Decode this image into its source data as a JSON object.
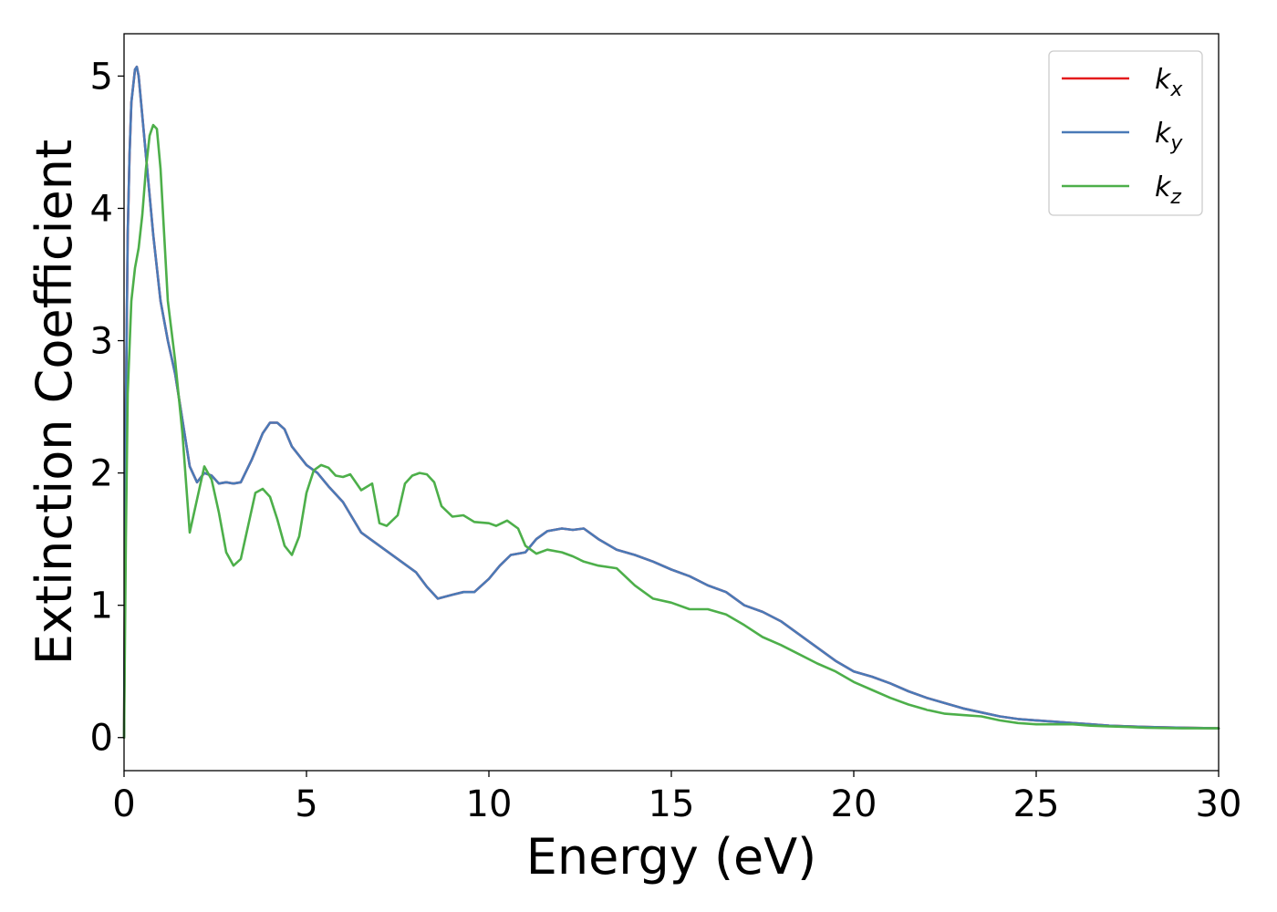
{
  "chart_data": {
    "type": "line",
    "title": "",
    "xlabel": "Energy (eV)",
    "ylabel": "Extinction Coefficient",
    "xlim": [
      0,
      30
    ],
    "ylim": [
      -0.25,
      5.32
    ],
    "xticks": [
      0,
      5,
      10,
      15,
      20,
      25,
      30
    ],
    "yticks": [
      0,
      1,
      2,
      3,
      4,
      5
    ],
    "grid": false,
    "legend_position": "top-right",
    "series": [
      {
        "name": "k",
        "subscript": "x",
        "color": "#e41a1c",
        "x": [
          0,
          0.05,
          0.1,
          0.15,
          0.2,
          0.3,
          0.35,
          0.4,
          0.5,
          0.6,
          0.7,
          0.8,
          1.0,
          1.2,
          1.4,
          1.6,
          1.8,
          2.0,
          2.2,
          2.4,
          2.6,
          2.8,
          3.0,
          3.2,
          3.5,
          3.8,
          4.0,
          4.2,
          4.4,
          4.6,
          5.0,
          5.3,
          5.6,
          6.0,
          6.5,
          7.0,
          7.5,
          8.0,
          8.3,
          8.6,
          9.0,
          9.3,
          9.6,
          10.0,
          10.3,
          10.6,
          11.0,
          11.3,
          11.6,
          12.0,
          12.3,
          12.6,
          13.0,
          13.5,
          14.0,
          14.5,
          15.0,
          15.5,
          16.0,
          16.5,
          17.0,
          17.5,
          18.0,
          18.5,
          19.0,
          19.5,
          20.0,
          20.5,
          21.0,
          21.5,
          22.0,
          22.5,
          23.0,
          23.5,
          24.0,
          24.5,
          25.0,
          25.5,
          26.0,
          26.5,
          27.0,
          27.5,
          28.0,
          29.0,
          30.0
        ],
        "y": [
          0,
          2.5,
          3.8,
          4.4,
          4.8,
          5.05,
          5.07,
          5.0,
          4.7,
          4.4,
          4.1,
          3.8,
          3.3,
          3.0,
          2.75,
          2.4,
          2.05,
          1.93,
          2.0,
          1.98,
          1.92,
          1.93,
          1.92,
          1.93,
          2.1,
          2.3,
          2.38,
          2.38,
          2.33,
          2.2,
          2.06,
          2.0,
          1.9,
          1.78,
          1.55,
          1.45,
          1.35,
          1.25,
          1.14,
          1.05,
          1.08,
          1.1,
          1.1,
          1.2,
          1.3,
          1.38,
          1.4,
          1.5,
          1.56,
          1.58,
          1.57,
          1.58,
          1.5,
          1.42,
          1.38,
          1.33,
          1.27,
          1.22,
          1.15,
          1.1,
          1.0,
          0.95,
          0.88,
          0.78,
          0.68,
          0.58,
          0.5,
          0.46,
          0.41,
          0.35,
          0.3,
          0.26,
          0.22,
          0.19,
          0.16,
          0.14,
          0.13,
          0.12,
          0.11,
          0.1,
          0.09,
          0.085,
          0.08,
          0.075,
          0.07
        ]
      },
      {
        "name": "k",
        "subscript": "y",
        "color": "#4a7ab7",
        "x": [
          0,
          0.05,
          0.1,
          0.15,
          0.2,
          0.3,
          0.35,
          0.4,
          0.5,
          0.6,
          0.7,
          0.8,
          1.0,
          1.2,
          1.4,
          1.6,
          1.8,
          2.0,
          2.2,
          2.4,
          2.6,
          2.8,
          3.0,
          3.2,
          3.5,
          3.8,
          4.0,
          4.2,
          4.4,
          4.6,
          5.0,
          5.3,
          5.6,
          6.0,
          6.5,
          7.0,
          7.5,
          8.0,
          8.3,
          8.6,
          9.0,
          9.3,
          9.6,
          10.0,
          10.3,
          10.6,
          11.0,
          11.3,
          11.6,
          12.0,
          12.3,
          12.6,
          13.0,
          13.5,
          14.0,
          14.5,
          15.0,
          15.5,
          16.0,
          16.5,
          17.0,
          17.5,
          18.0,
          18.5,
          19.0,
          19.5,
          20.0,
          20.5,
          21.0,
          21.5,
          22.0,
          22.5,
          23.0,
          23.5,
          24.0,
          24.5,
          25.0,
          25.5,
          26.0,
          26.5,
          27.0,
          27.5,
          28.0,
          29.0,
          30.0
        ],
        "y": [
          0,
          2.5,
          3.8,
          4.4,
          4.8,
          5.05,
          5.07,
          5.0,
          4.7,
          4.4,
          4.1,
          3.8,
          3.3,
          3.0,
          2.75,
          2.4,
          2.05,
          1.93,
          2.0,
          1.98,
          1.92,
          1.93,
          1.92,
          1.93,
          2.1,
          2.3,
          2.38,
          2.38,
          2.33,
          2.2,
          2.06,
          2.0,
          1.9,
          1.78,
          1.55,
          1.45,
          1.35,
          1.25,
          1.14,
          1.05,
          1.08,
          1.1,
          1.1,
          1.2,
          1.3,
          1.38,
          1.4,
          1.5,
          1.56,
          1.58,
          1.57,
          1.58,
          1.5,
          1.42,
          1.38,
          1.33,
          1.27,
          1.22,
          1.15,
          1.1,
          1.0,
          0.95,
          0.88,
          0.78,
          0.68,
          0.58,
          0.5,
          0.46,
          0.41,
          0.35,
          0.3,
          0.26,
          0.22,
          0.19,
          0.16,
          0.14,
          0.13,
          0.12,
          0.11,
          0.1,
          0.09,
          0.085,
          0.08,
          0.075,
          0.07
        ]
      },
      {
        "name": "k",
        "subscript": "z",
        "color": "#4daf4a",
        "x": [
          0,
          0.05,
          0.1,
          0.2,
          0.3,
          0.4,
          0.5,
          0.6,
          0.7,
          0.8,
          0.9,
          1.0,
          1.1,
          1.2,
          1.4,
          1.6,
          1.8,
          2.0,
          2.2,
          2.4,
          2.6,
          2.8,
          3.0,
          3.2,
          3.4,
          3.6,
          3.8,
          4.0,
          4.2,
          4.4,
          4.6,
          4.8,
          5.0,
          5.2,
          5.4,
          5.6,
          5.8,
          6.0,
          6.2,
          6.5,
          6.8,
          7.0,
          7.2,
          7.5,
          7.7,
          7.9,
          8.1,
          8.3,
          8.5,
          8.7,
          9.0,
          9.3,
          9.6,
          10.0,
          10.2,
          10.5,
          10.8,
          11.0,
          11.3,
          11.6,
          12.0,
          12.3,
          12.6,
          13.0,
          13.5,
          14.0,
          14.5,
          15.0,
          15.5,
          16.0,
          16.5,
          17.0,
          17.5,
          18.0,
          18.5,
          19.0,
          19.5,
          20.0,
          20.5,
          21.0,
          21.5,
          22.0,
          22.5,
          23.0,
          23.5,
          24.0,
          24.5,
          25.0,
          25.5,
          26.0,
          26.5,
          27.0,
          27.5,
          28.0,
          29.0,
          30.0
        ],
        "y": [
          0,
          1.5,
          2.6,
          3.3,
          3.55,
          3.7,
          3.95,
          4.3,
          4.55,
          4.63,
          4.6,
          4.3,
          3.8,
          3.3,
          2.85,
          2.3,
          1.55,
          1.8,
          2.05,
          1.95,
          1.7,
          1.4,
          1.3,
          1.35,
          1.6,
          1.85,
          1.88,
          1.82,
          1.65,
          1.45,
          1.38,
          1.52,
          1.85,
          2.02,
          2.06,
          2.04,
          1.98,
          1.97,
          1.99,
          1.87,
          1.92,
          1.62,
          1.6,
          1.68,
          1.92,
          1.98,
          2.0,
          1.99,
          1.93,
          1.75,
          1.67,
          1.68,
          1.63,
          1.62,
          1.6,
          1.64,
          1.58,
          1.45,
          1.39,
          1.42,
          1.4,
          1.37,
          1.33,
          1.3,
          1.28,
          1.15,
          1.05,
          1.02,
          0.97,
          0.97,
          0.93,
          0.85,
          0.76,
          0.7,
          0.63,
          0.56,
          0.5,
          0.42,
          0.36,
          0.3,
          0.25,
          0.21,
          0.18,
          0.17,
          0.16,
          0.13,
          0.11,
          0.1,
          0.1,
          0.1,
          0.09,
          0.085,
          0.08,
          0.075,
          0.07,
          0.07
        ]
      }
    ]
  }
}
